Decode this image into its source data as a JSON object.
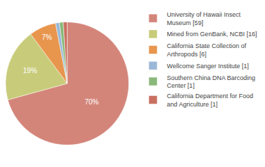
{
  "chart_data": {
    "type": "pie",
    "categories": [
      "University of Hawaii Insect\nMuseum [59]",
      "Mined from GenBank, NCBI [16]",
      "California State Collection of\nArthropods [6]",
      "Wellcome Sanger Institute [1]",
      "Southern China DNA Barcoding\nCenter [1]",
      "California Department for Food\nand Agriculture [1]"
    ],
    "values": [
      70,
      19,
      7,
      1,
      1,
      1
    ],
    "value_labels": [
      "70%",
      "19%",
      "7%",
      null,
      null,
      null
    ],
    "data_labels": true,
    "colors": [
      "#d4857a",
      "#c8cc7a",
      "#e8964e",
      "#9ab8d8",
      "#8ab87a",
      "#c97060"
    ],
    "legend": "right"
  }
}
